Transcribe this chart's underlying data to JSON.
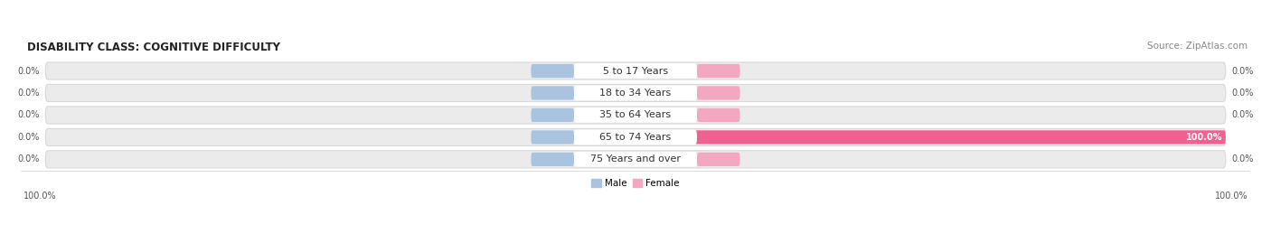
{
  "title": "DISABILITY CLASS: COGNITIVE DIFFICULTY",
  "source": "Source: ZipAtlas.com",
  "categories": [
    "5 to 17 Years",
    "18 to 34 Years",
    "35 to 64 Years",
    "65 to 74 Years",
    "75 Years and over"
  ],
  "male_values": [
    0.0,
    0.0,
    0.0,
    0.0,
    0.0
  ],
  "female_values": [
    0.0,
    0.0,
    0.0,
    100.0,
    0.0
  ],
  "male_left_labels": [
    "0.0%",
    "0.0%",
    "0.0%",
    "0.0%",
    "0.0%"
  ],
  "female_right_labels": [
    "0.0%",
    "0.0%",
    "0.0%",
    "100.0%",
    "0.0%"
  ],
  "left_axis_label": "100.0%",
  "right_axis_label": "100.0%",
  "male_color": "#aac4e0",
  "female_color_light": "#f4a7c0",
  "female_color_full": "#f06090",
  "track_bg_color": "#ebebeb",
  "track_border_color": "#d8d8d8",
  "label_bg_color": "#ffffff",
  "figsize": [
    14.06,
    2.69
  ],
  "dpi": 100,
  "title_fontsize": 8.5,
  "label_fontsize": 7.0,
  "category_fontsize": 8.0,
  "source_fontsize": 7.5
}
